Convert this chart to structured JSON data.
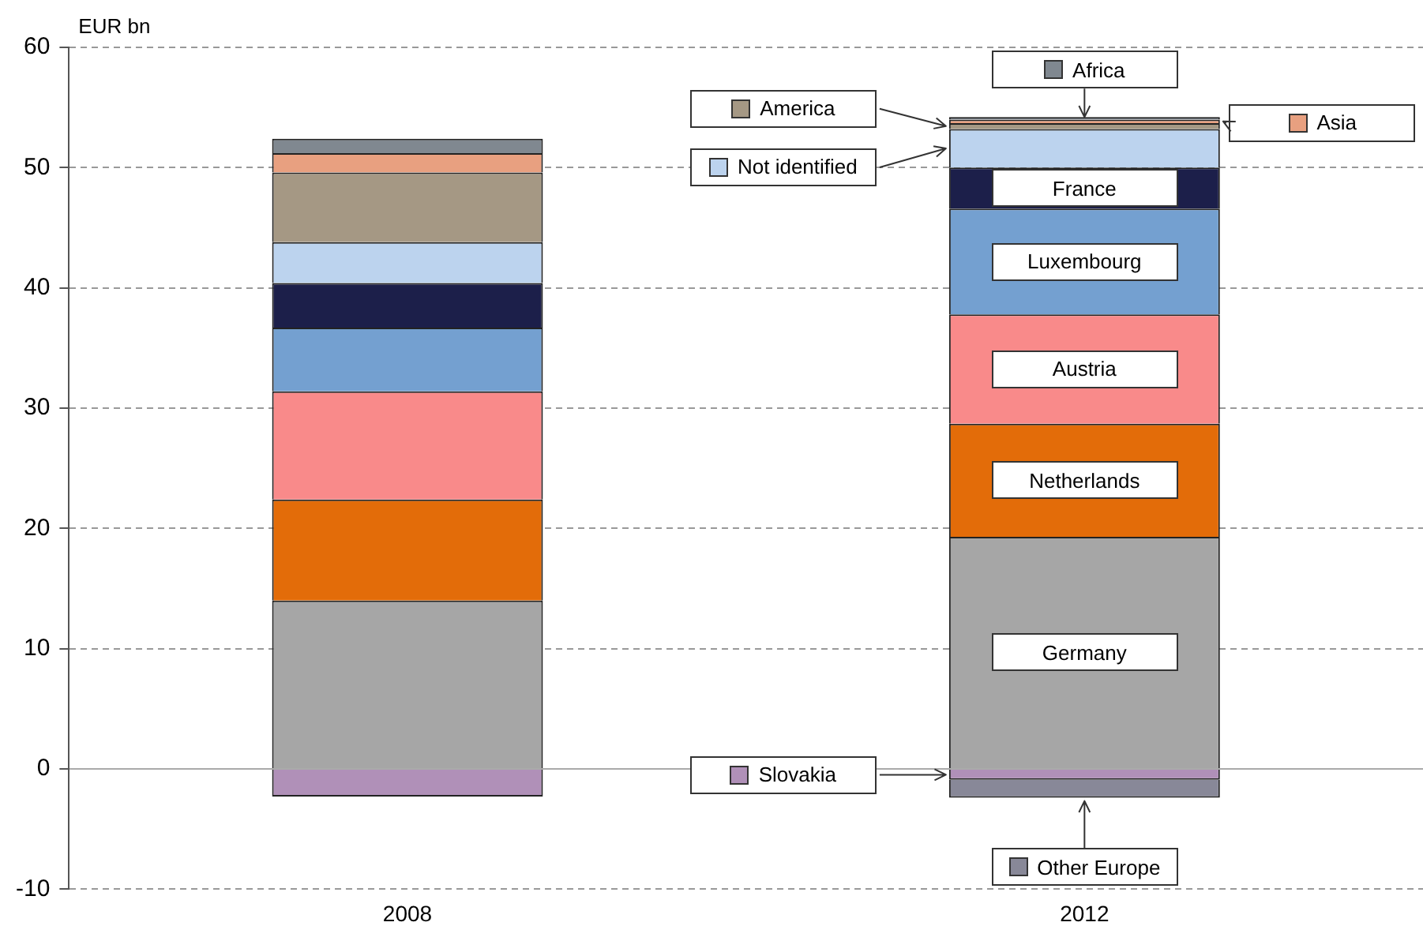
{
  "chart_data": {
    "type": "bar",
    "stacked": true,
    "ylabel": "EUR bn",
    "categories": [
      "2008",
      "2012"
    ],
    "series": [
      {
        "name": "Slovakia",
        "color": "#b090b8",
        "values": [
          -2.3,
          -0.9
        ]
      },
      {
        "name": "Other Europe",
        "color": "#888898",
        "values": [
          null,
          -1.5
        ]
      },
      {
        "name": "Germany",
        "color": "#a6a6a6",
        "values": [
          14.0,
          19.3
        ]
      },
      {
        "name": "Netherlands",
        "color": "#e36c09",
        "values": [
          8.4,
          9.4
        ]
      },
      {
        "name": "Austria",
        "color": "#f98a8a",
        "values": [
          9.0,
          9.1
        ]
      },
      {
        "name": "Luxembourg",
        "color": "#74a0d0",
        "values": [
          5.3,
          8.8
        ]
      },
      {
        "name": "France",
        "color": "#1c1f4a",
        "values": [
          3.7,
          3.4
        ]
      },
      {
        "name": "Not identified",
        "color": "#bcd3ee",
        "values": [
          3.4,
          3.2
        ]
      },
      {
        "name": "America",
        "color": "#a59884",
        "values": [
          5.8,
          0.5
        ]
      },
      {
        "name": "Asia",
        "color": "#e8a080",
        "values": [
          1.6,
          0.3
        ]
      },
      {
        "name": "Africa",
        "color": "#808890",
        "values": [
          1.2,
          0.2
        ]
      }
    ],
    "ylim": [
      -10,
      60
    ],
    "yticks": [
      -10,
      0,
      10,
      20,
      30,
      40,
      50,
      60
    ],
    "grid": "y",
    "legend": "right"
  }
}
